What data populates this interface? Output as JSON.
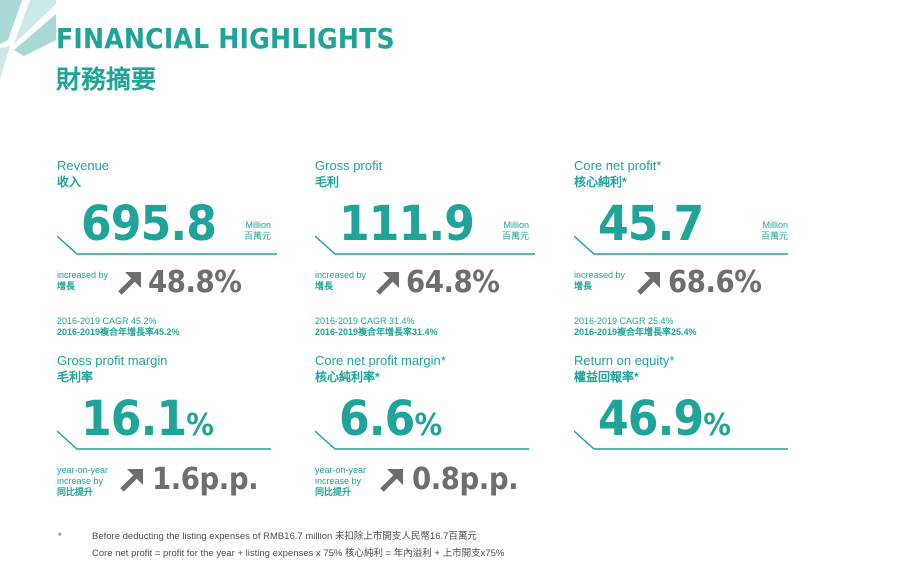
{
  "header": {
    "title_en": "FINANCIAL HIGHLIGHTS",
    "title_zh": "財務摘要"
  },
  "colors": {
    "accent": "#1fa49a",
    "grey": "#6d6e70",
    "corner": "#a8d9d6"
  },
  "cards": {
    "revenue": {
      "label_en": "Revenue",
      "label_zh": "收入",
      "value": "695.8",
      "unit_en": "Million",
      "unit_zh": "百萬元",
      "inc_en": "increased by",
      "inc_zh": "增長",
      "inc_value": "48.8%",
      "cagr_en": "2016-2019 CAGR 45.2%",
      "cagr_zh": "2016-2019複合年增長率45.2%"
    },
    "gross_profit": {
      "label_en": "Gross profit",
      "label_zh": "毛利",
      "value": "111.9",
      "unit_en": "Million",
      "unit_zh": "百萬元",
      "inc_en": "increased by",
      "inc_zh": "增長",
      "inc_value": "64.8%",
      "cagr_en": "2016-2019 CAGR 31.4%",
      "cagr_zh": "2016-2019複合年增長率31.4%"
    },
    "core_net_profit": {
      "label_en": "Core net profit*",
      "label_zh": "核心純利*",
      "value": "45.7",
      "unit_en": "Million",
      "unit_zh": "百萬元",
      "inc_en": "increased by",
      "inc_zh": "增長",
      "inc_value": "68.6%",
      "cagr_en": "2016-2019 CAGR 25.4%",
      "cagr_zh": "2016-2019複合年增長率25.4%"
    },
    "gross_profit_margin": {
      "label_en": "Gross profit margin",
      "label_zh": "毛利率",
      "value": "16.1",
      "pct": "%",
      "inc_en1": "year-on-year",
      "inc_en2": "increase by",
      "inc_zh": "同比提升",
      "inc_value": "1.6p.p."
    },
    "core_net_profit_margin": {
      "label_en": "Core net profit margin*",
      "label_zh": "核心純利率*",
      "value": "6.6",
      "pct": "%",
      "inc_en1": "year-on-year",
      "inc_en2": "increase by",
      "inc_zh": "同比提升",
      "inc_value": "0.8p.p."
    },
    "return_on_equity": {
      "label_en": "Return on equity*",
      "label_zh": "權益回報率*",
      "value": "46.9",
      "pct": "%"
    }
  },
  "footnote": {
    "mark": "*",
    "line1": "Before deducting the listing expenses of RMB16.7 million 未扣除上市開支人民幣16.7百萬元",
    "line2": "Core net profit = profit for the year + listing expenses x 75% 核心純利 = 年內溢利 + 上市開支x75%"
  }
}
